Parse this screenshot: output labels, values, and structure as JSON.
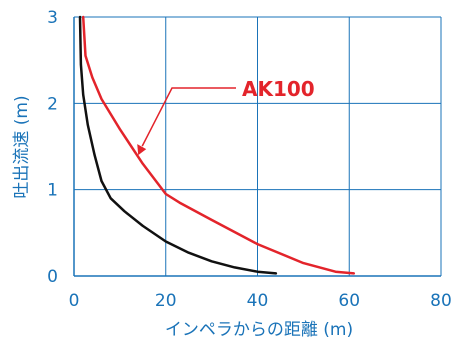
{
  "chart_data": {
    "type": "line",
    "xlabel": "インペラからの距離 (m)",
    "ylabel": "吐出流速 (m)",
    "xlim": [
      0,
      80
    ],
    "ylim": [
      0,
      3
    ],
    "x_ticks": [
      "0",
      "20",
      "40",
      "60",
      "80"
    ],
    "y_ticks": [
      "0",
      "1",
      "2",
      "3"
    ],
    "grid": true,
    "colors": {
      "axis": "#1a73b8",
      "grid": "#1a73b8",
      "tick_text": "#1a73b8",
      "annotation": "#e3242b",
      "series_black": "#111111",
      "series_red": "#e3242b"
    },
    "annotation": {
      "text": "AK100",
      "points_to_x": 14,
      "points_to_y": 1.4
    },
    "series": [
      {
        "color": "#111111",
        "points": [
          [
            1.3,
            3.0
          ],
          [
            1.5,
            2.45
          ],
          [
            2,
            2.1
          ],
          [
            3,
            1.75
          ],
          [
            4.5,
            1.4
          ],
          [
            6,
            1.1
          ],
          [
            8,
            0.9
          ],
          [
            11,
            0.75
          ],
          [
            15,
            0.58
          ],
          [
            20,
            0.4
          ],
          [
            25,
            0.27
          ],
          [
            30,
            0.17
          ],
          [
            35,
            0.1
          ],
          [
            40,
            0.05
          ],
          [
            44,
            0.03
          ]
        ]
      },
      {
        "color": "#e3242b",
        "points": [
          [
            2,
            3.0
          ],
          [
            2.5,
            2.55
          ],
          [
            4,
            2.3
          ],
          [
            6,
            2.05
          ],
          [
            10,
            1.7
          ],
          [
            15,
            1.3
          ],
          [
            20,
            0.95
          ],
          [
            23,
            0.85
          ],
          [
            30,
            0.65
          ],
          [
            40,
            0.37
          ],
          [
            50,
            0.15
          ],
          [
            57,
            0.05
          ],
          [
            61,
            0.03
          ]
        ]
      }
    ]
  }
}
